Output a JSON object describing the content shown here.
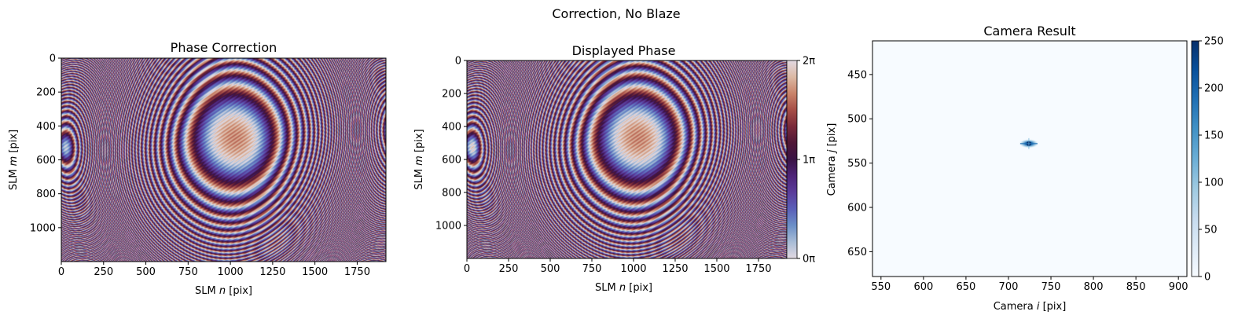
{
  "figure": {
    "suptitle": "Correction, No Blaze"
  },
  "colors": {
    "twilight_shifted": [
      "#e2d9e2",
      "#a8bcd6",
      "#6b8fc7",
      "#5a5fb8",
      "#5a3c9a",
      "#4e2478",
      "#3a1345",
      "#4f1737",
      "#7a2a3a",
      "#a64e47",
      "#c9836a",
      "#dcb9a4",
      "#e2d9e2"
    ],
    "blues": [
      "#f7fbff",
      "#deebf7",
      "#c6dbef",
      "#9ecae1",
      "#6baed6",
      "#4292c6",
      "#2171b5",
      "#08519c",
      "#08306b"
    ],
    "spine": "#000000"
  },
  "chart_data": [
    {
      "type": "heatmap",
      "title": "Phase Correction",
      "xlabel": "SLM n [pix]",
      "ylabel": "SLM m [pix]",
      "xlim": [
        0,
        1920
      ],
      "ylim": [
        1200,
        0
      ],
      "xticks": [
        "0",
        "250",
        "500",
        "750",
        "1000",
        "1250",
        "1500",
        "1750"
      ],
      "yticks": [
        "0",
        "200",
        "400",
        "600",
        "800",
        "1000"
      ],
      "colormap": "twilight_shifted",
      "colorbar": false
    },
    {
      "type": "heatmap",
      "title": "Displayed Phase",
      "xlabel": "SLM n [pix]",
      "ylabel": "SLM m [pix]",
      "xlim": [
        0,
        1920
      ],
      "ylim": [
        1200,
        0
      ],
      "xticks": [
        "0",
        "250",
        "500",
        "750",
        "1000",
        "1250",
        "1500",
        "1750"
      ],
      "yticks": [
        "0",
        "200",
        "400",
        "600",
        "800",
        "1000"
      ],
      "colormap": "twilight_shifted",
      "colorbar": true,
      "colorbar_ticks": [
        "0π",
        "1π",
        "2π"
      ]
    },
    {
      "type": "heatmap",
      "title": "Camera Result",
      "xlabel": "Camera i [pix]",
      "ylabel": "Camera j [pix]",
      "xlim": [
        540,
        910
      ],
      "ylim": [
        678,
        412
      ],
      "xticks": [
        "550",
        "600",
        "650",
        "700",
        "750",
        "800",
        "850",
        "900"
      ],
      "yticks": [
        "450",
        "500",
        "550",
        "600",
        "650"
      ],
      "colormap": "blues",
      "colorbar": true,
      "colorbar_ticks": [
        "0",
        "50",
        "100",
        "150",
        "200",
        "250"
      ],
      "spot": {
        "x": 724,
        "y": 528,
        "peak": 255
      }
    }
  ]
}
